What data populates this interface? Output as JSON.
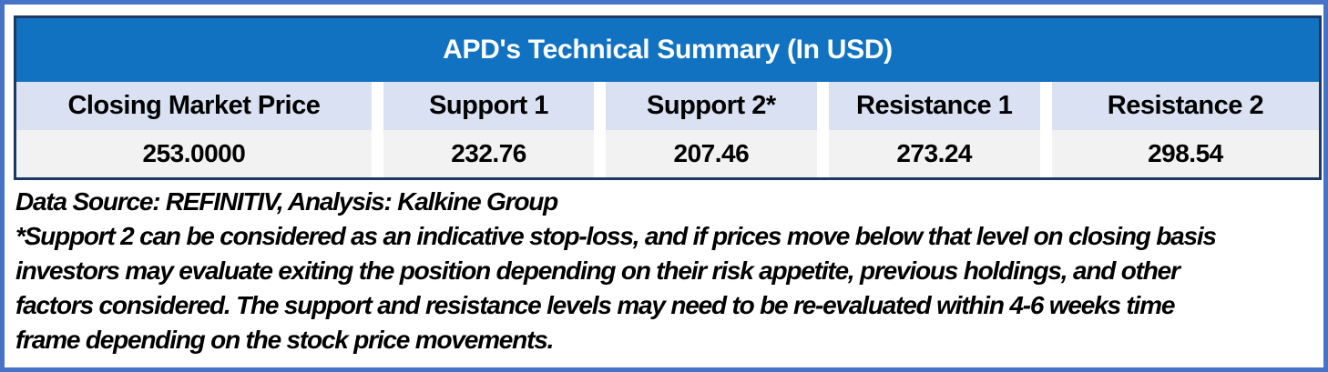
{
  "chart_data": {
    "type": "table",
    "title": "APD's Technical Summary (In USD)",
    "columns": [
      "Closing Market Price",
      "Support 1",
      "Support 2*",
      "Resistance 1",
      "Resistance 2"
    ],
    "rows": [
      [
        "253.0000",
        "232.76",
        "207.46",
        "273.24",
        "298.54"
      ]
    ],
    "notes": [
      "Data Source: REFINITIV, Analysis: Kalkine Group",
      "*Support 2 can be considered as an indicative stop-loss, and if prices move below that level on closing basis investors may evaluate exiting the position depending on their risk appetite, previous holdings, and other factors considered. The support and resistance levels may need to be re-evaluated within 4-6 weeks time frame depending on the stock price movements."
    ]
  },
  "table": {
    "title": "APD's Technical Summary (In USD)",
    "columns": [
      {
        "header": "Closing Market Price",
        "value": "253.0000"
      },
      {
        "header": "Support 1",
        "value": "232.76"
      },
      {
        "header": "Support 2*",
        "value": "207.46"
      },
      {
        "header": "Resistance 1",
        "value": "273.24"
      },
      {
        "header": "Resistance 2",
        "value": "298.54"
      }
    ]
  },
  "notes": {
    "source_line": "Data Source: REFINITIV, Analysis: Kalkine Group",
    "disclaimer_lines": [
      "*Support 2 can be considered as an indicative stop-loss, and if prices move below that level on closing basis",
      "investors may evaluate exiting the position depending on their risk appetite, previous holdings, and other",
      "factors considered. The support and resistance levels may need to be re-evaluated within 4-6 weeks time",
      "frame depending on the stock price movements."
    ]
  },
  "colors": {
    "frame_border": "#4673C8",
    "table_border": "#1F3864",
    "title_bg": "#1172C2",
    "title_text": "#FFFFFF",
    "header_bg": "#D9E1F2",
    "value_bg": "#F2F2F2",
    "text": "#000000"
  }
}
